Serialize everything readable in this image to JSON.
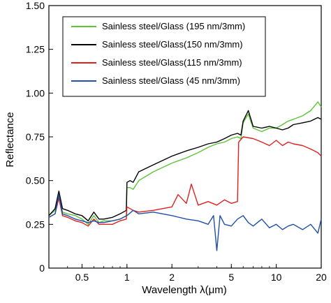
{
  "chart_data": {
    "type": "line",
    "title": "",
    "xlabel": "Wavelength λ(μm)",
    "ylabel": "Reflectance",
    "xscale": "log",
    "xlim": [
      0.3,
      20
    ],
    "ylim": [
      0,
      1.5
    ],
    "xticks": [
      {
        "value": 0.5,
        "label": "0.5"
      },
      {
        "value": 1,
        "label": "1"
      },
      {
        "value": 2,
        "label": "2"
      },
      {
        "value": 5,
        "label": "5"
      },
      {
        "value": 10,
        "label": "10"
      },
      {
        "value": 20,
        "label": "20"
      }
    ],
    "yticks": [
      {
        "value": 0,
        "label": "0"
      },
      {
        "value": 0.25,
        "label": "0.25"
      },
      {
        "value": 0.5,
        "label": "0.50"
      },
      {
        "value": 0.75,
        "label": "0.75"
      },
      {
        "value": 1.0,
        "label": "1.00"
      },
      {
        "value": 1.25,
        "label": "1.25"
      },
      {
        "value": 1.5,
        "label": "1.50"
      }
    ],
    "grid": false,
    "legend_position": "top-center",
    "series": [
      {
        "name": "Sainless steel/Glass  (195 nm/3mm)",
        "color": "#5cc33a",
        "x": [
          0.3,
          0.33,
          0.35,
          0.37,
          0.4,
          0.45,
          0.5,
          0.55,
          0.6,
          0.65,
          0.7,
          0.8,
          0.9,
          0.99,
          1.0,
          1.05,
          1.1,
          1.2,
          1.5,
          2.0,
          2.5,
          3.0,
          3.5,
          4.0,
          4.5,
          5.0,
          5.5,
          5.8,
          6.0,
          6.5,
          7.0,
          8.0,
          9.0,
          10.0,
          11.0,
          12.0,
          13.0,
          15.0,
          17.0,
          19.0,
          20.0
        ],
        "y": [
          0.3,
          0.33,
          0.42,
          0.32,
          0.31,
          0.3,
          0.28,
          0.25,
          0.3,
          0.26,
          0.27,
          0.27,
          0.28,
          0.3,
          0.46,
          0.46,
          0.45,
          0.5,
          0.55,
          0.6,
          0.63,
          0.66,
          0.69,
          0.71,
          0.72,
          0.74,
          0.75,
          0.74,
          0.83,
          0.88,
          0.8,
          0.78,
          0.8,
          0.8,
          0.82,
          0.84,
          0.85,
          0.87,
          0.9,
          0.95,
          0.92
        ]
      },
      {
        "name": "Sainless steel/Glass(150 nm/3mm)",
        "color": "#000000",
        "x": [
          0.3,
          0.33,
          0.35,
          0.37,
          0.4,
          0.45,
          0.5,
          0.55,
          0.6,
          0.65,
          0.7,
          0.8,
          0.9,
          0.99,
          1.0,
          1.05,
          1.1,
          1.2,
          1.5,
          2.0,
          2.5,
          3.0,
          3.5,
          4.0,
          4.5,
          5.0,
          5.5,
          5.8,
          6.0,
          6.5,
          7.0,
          8.0,
          9.0,
          10.0,
          11.0,
          12.0,
          13.0,
          15.0,
          17.0,
          19.0,
          20.0
        ],
        "y": [
          0.3,
          0.34,
          0.44,
          0.34,
          0.33,
          0.31,
          0.3,
          0.27,
          0.32,
          0.28,
          0.28,
          0.29,
          0.31,
          0.33,
          0.49,
          0.5,
          0.49,
          0.55,
          0.59,
          0.64,
          0.67,
          0.69,
          0.71,
          0.72,
          0.74,
          0.76,
          0.77,
          0.76,
          0.84,
          0.9,
          0.81,
          0.8,
          0.81,
          0.8,
          0.79,
          0.8,
          0.82,
          0.83,
          0.84,
          0.86,
          0.85
        ]
      },
      {
        "name": "Sainless steel/Glass(115 nm/3mm)",
        "color": "#e02020",
        "x": [
          0.3,
          0.33,
          0.35,
          0.37,
          0.4,
          0.45,
          0.5,
          0.55,
          0.6,
          0.65,
          0.7,
          0.8,
          0.9,
          0.99,
          1.0,
          1.1,
          1.2,
          1.5,
          2.0,
          2.2,
          2.5,
          2.7,
          3.0,
          3.5,
          4.0,
          4.5,
          5.0,
          5.5,
          5.6,
          6.0,
          7.0,
          8.0,
          9.0,
          10.0,
          11.0,
          12.0,
          13.0,
          15.0,
          17.0,
          19.0,
          20.0
        ],
        "y": [
          0.29,
          0.31,
          0.4,
          0.3,
          0.29,
          0.27,
          0.26,
          0.24,
          0.28,
          0.25,
          0.25,
          0.25,
          0.27,
          0.28,
          0.35,
          0.33,
          0.32,
          0.33,
          0.35,
          0.42,
          0.37,
          0.48,
          0.36,
          0.38,
          0.36,
          0.39,
          0.37,
          0.38,
          0.72,
          0.75,
          0.74,
          0.72,
          0.7,
          0.73,
          0.7,
          0.72,
          0.71,
          0.7,
          0.68,
          0.66,
          0.64
        ]
      },
      {
        "name": "Sainless steel/Glass (45 nm/3mm)",
        "color": "#1f4fa8",
        "x": [
          0.3,
          0.33,
          0.35,
          0.37,
          0.4,
          0.45,
          0.5,
          0.55,
          0.6,
          0.65,
          0.7,
          0.8,
          0.9,
          1.0,
          1.1,
          1.2,
          1.5,
          2.0,
          2.5,
          3.0,
          3.5,
          3.8,
          4.0,
          4.2,
          4.5,
          5.0,
          5.5,
          6.0,
          6.5,
          7.0,
          8.0,
          9.0,
          10.0,
          11.0,
          12.0,
          13.0,
          15.0,
          17.0,
          19.0,
          20.0
        ],
        "y": [
          0.29,
          0.31,
          0.42,
          0.31,
          0.3,
          0.28,
          0.27,
          0.26,
          0.27,
          0.26,
          0.26,
          0.27,
          0.28,
          0.3,
          0.33,
          0.31,
          0.32,
          0.3,
          0.28,
          0.27,
          0.25,
          0.3,
          0.1,
          0.3,
          0.25,
          0.24,
          0.28,
          0.3,
          0.26,
          0.24,
          0.28,
          0.23,
          0.25,
          0.22,
          0.24,
          0.25,
          0.22,
          0.25,
          0.2,
          0.28
        ]
      }
    ]
  }
}
